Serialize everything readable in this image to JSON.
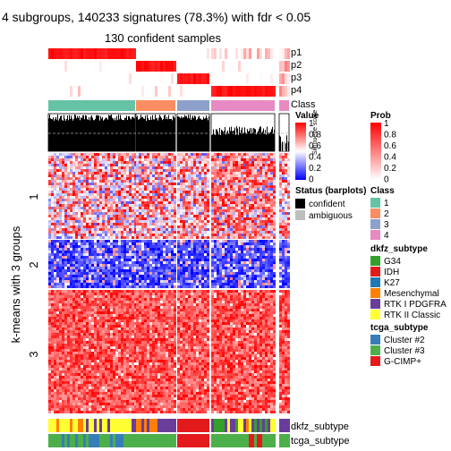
{
  "chart_data": {
    "type": "heatmap",
    "title": "4 subgroups, 140233 signatures (78.3%) with fdr < 0.05",
    "subtitle": "130 confident samples",
    "row_axis_label": "k-means with 3 groups",
    "row_groups": [
      "1",
      "2",
      "3"
    ],
    "top_tracks": [
      "p1",
      "p2",
      "p3",
      "p4",
      "Class"
    ],
    "bottom_tracks": [
      "dkfz_subtype",
      "tcga_subtype"
    ],
    "silhouette_label": "Silhouette score",
    "legends": {
      "value": {
        "title": "Value",
        "ticks": [
          "1",
          "0.8",
          "0.6",
          "0.4",
          "0.2",
          "0"
        ],
        "colors": [
          "#ff0000",
          "#ffffff",
          "#0000ff"
        ]
      },
      "status": {
        "title": "Status (barplots)",
        "items": [
          {
            "label": "confident",
            "color": "#000000"
          },
          {
            "label": "ambiguous",
            "color": "#bebebe"
          }
        ]
      },
      "prob": {
        "title": "Prob",
        "ticks": [
          "1",
          "0.8",
          "0.6",
          "0.4",
          "0.2",
          "0"
        ],
        "colors": [
          "#ff0000",
          "#ffffff"
        ]
      },
      "class": {
        "title": "Class",
        "items": [
          {
            "label": "1",
            "color": "#66c2a5"
          },
          {
            "label": "2",
            "color": "#fc8d62"
          },
          {
            "label": "3",
            "color": "#8da0cb"
          },
          {
            "label": "4",
            "color": "#e78ac3"
          }
        ]
      },
      "dkfz": {
        "title": "dkfz_subtype",
        "items": [
          {
            "label": "G34",
            "color": "#33a02c"
          },
          {
            "label": "IDH",
            "color": "#e31a1c"
          },
          {
            "label": "K27",
            "color": "#1f78b4"
          },
          {
            "label": "Mesenchymal",
            "color": "#ff7f00"
          },
          {
            "label": "RTK I PDGFRA",
            "color": "#6a3d9a"
          },
          {
            "label": "RTK II Classic",
            "color": "#ffff33"
          }
        ]
      },
      "tcga": {
        "title": "tcga_subtype",
        "items": [
          {
            "label": "Cluster #2",
            "color": "#377eb8"
          },
          {
            "label": "Cluster #3",
            "color": "#4daf4a"
          },
          {
            "label": "G-CIMP+",
            "color": "#e41a1c"
          }
        ]
      }
    }
  }
}
